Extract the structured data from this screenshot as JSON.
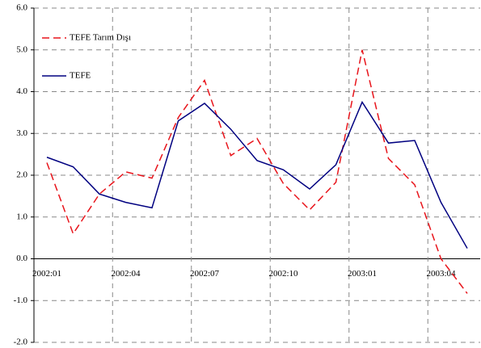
{
  "chart_data": {
    "type": "line",
    "categories": [
      "2002:01",
      null,
      null,
      "2002:04",
      null,
      null,
      "2002:07",
      null,
      null,
      "2002:10",
      null,
      null,
      "2003:01",
      null,
      null,
      "2003:04",
      null
    ],
    "series": [
      {
        "name": "TEFE Tarım Dışı",
        "color": "#e8141b",
        "dash": true,
        "values": [
          2.3,
          0.6,
          1.55,
          2.08,
          1.93,
          3.38,
          4.27,
          2.47,
          2.88,
          1.8,
          1.17,
          1.83,
          5.0,
          2.4,
          1.77,
          0.0,
          -0.83
        ]
      },
      {
        "name": "TEFE",
        "color": "#000080",
        "dash": false,
        "values": [
          2.43,
          2.2,
          1.55,
          1.35,
          1.22,
          3.3,
          3.72,
          3.1,
          2.35,
          2.13,
          1.67,
          2.25,
          3.75,
          2.77,
          2.83,
          1.35,
          0.25
        ]
      }
    ],
    "ylim": [
      -2,
      6
    ],
    "yticks": [
      {
        "value": -2,
        "label": "-2.0"
      },
      {
        "value": -1,
        "label": "-1.0"
      },
      {
        "value": 0,
        "label": "0.0"
      },
      {
        "value": 1,
        "label": "1.0"
      },
      {
        "value": 2,
        "label": "2.0"
      },
      {
        "value": 3,
        "label": "3.0"
      },
      {
        "value": 4,
        "label": "4.0"
      },
      {
        "value": 5,
        "label": "5.0"
      },
      {
        "value": 6,
        "label": "6.0"
      }
    ],
    "grid": true,
    "legend": "upper left"
  }
}
